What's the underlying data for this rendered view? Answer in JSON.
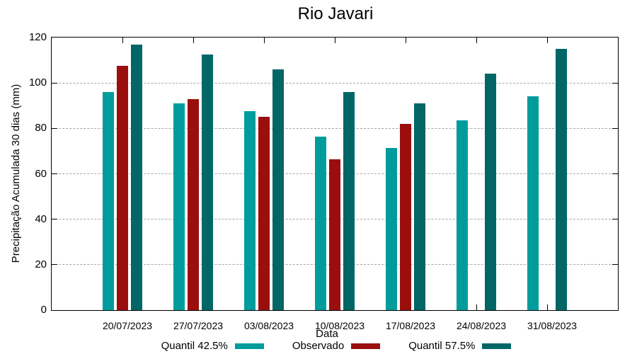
{
  "title": "Rio Javari",
  "chart_data": {
    "type": "bar",
    "title": "Rio Javari",
    "xlabel": "Data",
    "ylabel": "Precipitação Acumulada 30 dias (mm)",
    "ylim": [
      0,
      120
    ],
    "yticks": [
      0,
      20,
      40,
      60,
      80,
      100,
      120
    ],
    "grid": true,
    "grid_style": "dashed",
    "legend_position": "bottom",
    "background": "#ffffff",
    "axis_color": "#000000",
    "grid_color": "#a6a6a6",
    "categories": [
      "20/07/2023",
      "27/07/2023",
      "03/08/2023",
      "10/08/2023",
      "17/08/2023",
      "24/08/2023",
      "31/08/2023"
    ],
    "series": [
      {
        "name": "Quantil 42.5%",
        "color": "#009c9c",
        "values": [
          96,
          91,
          87.5,
          76.5,
          71.5,
          83.5,
          94
        ]
      },
      {
        "name": "Observado",
        "color": "#9a0e0e",
        "values": [
          107.5,
          93,
          85,
          66.5,
          82,
          null,
          null
        ]
      },
      {
        "name": "Quantil 57.5%",
        "color": "#006666",
        "values": [
          117,
          112.5,
          106,
          96,
          91,
          104,
          115
        ]
      }
    ]
  }
}
